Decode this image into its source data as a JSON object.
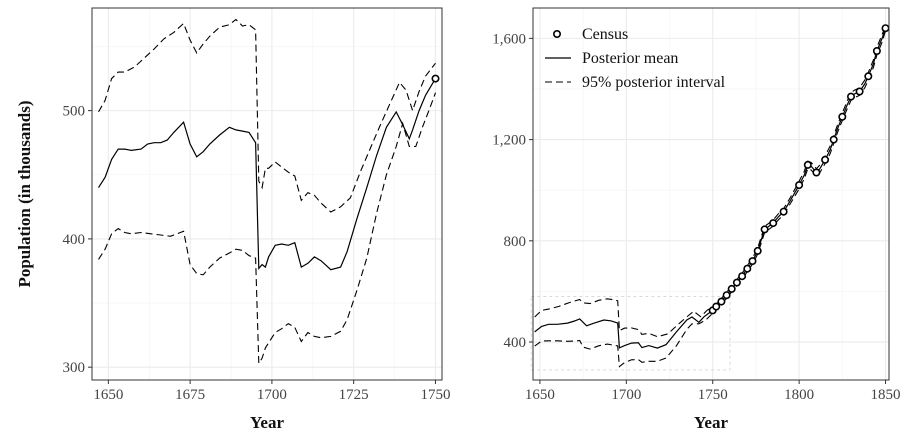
{
  "chart_data": [
    {
      "type": "line",
      "xlabel": "Year",
      "ylabel": "Population (in thousands)",
      "xlim": [
        1645,
        1752
      ],
      "ylim": [
        290,
        580
      ],
      "x_ticks": [
        1650,
        1675,
        1700,
        1725,
        1750
      ],
      "x_tick_labels": [
        "1650",
        "1675",
        "1700",
        "1725",
        "1750"
      ],
      "y_ticks": [
        300,
        400,
        500
      ],
      "y_tick_labels": [
        "300",
        "400",
        "500"
      ],
      "grid": true,
      "series": [
        {
          "name": "Posterior mean",
          "style": "solid",
          "x": [
            1647,
            1649,
            1651,
            1653,
            1655,
            1657,
            1660,
            1662,
            1664,
            1666,
            1668,
            1670,
            1673,
            1675,
            1677,
            1679,
            1681,
            1684,
            1687,
            1689,
            1691,
            1693,
            1695,
            1696,
            1697,
            1698,
            1699,
            1701,
            1703,
            1705,
            1707,
            1709,
            1711,
            1713,
            1715,
            1718,
            1721,
            1723,
            1726,
            1729,
            1732,
            1735,
            1738,
            1740,
            1742,
            1743,
            1745,
            1747,
            1750
          ],
          "y": [
            440,
            448,
            462,
            470,
            470,
            469,
            470,
            474,
            475,
            475,
            477,
            483,
            491,
            474,
            464,
            468,
            474,
            481,
            487,
            485,
            484,
            483,
            475,
            377,
            380,
            378,
            386,
            395,
            396,
            395,
            397,
            378,
            381,
            386,
            383,
            376,
            378,
            390,
            416,
            440,
            465,
            487,
            499,
            489,
            478,
            485,
            500,
            512,
            525
          ]
        },
        {
          "name": "95% posterior interval",
          "style": "dashed",
          "x": [
            1647,
            1649,
            1651,
            1653,
            1655,
            1658,
            1661,
            1664,
            1667,
            1670,
            1673,
            1675,
            1677,
            1679,
            1681,
            1684,
            1687,
            1689,
            1691,
            1693,
            1695,
            1696,
            1697,
            1698,
            1699,
            1701,
            1703,
            1705,
            1707,
            1709,
            1711,
            1713,
            1715,
            1718,
            1721,
            1724,
            1727,
            1730,
            1733,
            1736,
            1739,
            1741,
            1743,
            1745,
            1747,
            1750
          ],
          "y": [
            499,
            508,
            525,
            530,
            530,
            534,
            541,
            548,
            556,
            561,
            568,
            555,
            545,
            552,
            558,
            565,
            567,
            571,
            566,
            567,
            563,
            445,
            440,
            455,
            455,
            460,
            456,
            452,
            449,
            430,
            436,
            434,
            428,
            421,
            425,
            432,
            452,
            470,
            488,
            505,
            522,
            516,
            500,
            515,
            527,
            537
          ]
        },
        {
          "name": "95% posterior interval (lower)",
          "style": "dashed",
          "x": [
            1647,
            1649,
            1651,
            1653,
            1655,
            1657,
            1660,
            1663,
            1666,
            1669,
            1671,
            1673,
            1675,
            1677,
            1679,
            1681,
            1684,
            1687,
            1689,
            1691,
            1693,
            1695,
            1696,
            1697,
            1698,
            1699,
            1701,
            1703,
            1705,
            1707,
            1709,
            1711,
            1713,
            1715,
            1718,
            1721,
            1723,
            1726,
            1729,
            1732,
            1735,
            1738,
            1740,
            1742,
            1744,
            1746,
            1748,
            1750
          ],
          "y": [
            384,
            392,
            404,
            408,
            405,
            404,
            405,
            404,
            403,
            402,
            404,
            406,
            380,
            373,
            372,
            378,
            385,
            389,
            392,
            391,
            387,
            385,
            303,
            307,
            315,
            319,
            327,
            330,
            334,
            331,
            320,
            327,
            324,
            323,
            324,
            328,
            337,
            360,
            385,
            420,
            450,
            472,
            490,
            472,
            472,
            487,
            500,
            514
          ]
        }
      ]
    },
    {
      "type": "line",
      "xlabel": "Year",
      "ylabel": "",
      "xlim": [
        1646,
        1852
      ],
      "ylim": [
        250,
        1720
      ],
      "x_ticks": [
        1650,
        1700,
        1750,
        1800,
        1850
      ],
      "x_tick_labels": [
        "1650",
        "1700",
        "1750",
        "1800",
        "1850"
      ],
      "y_ticks": [
        400,
        800,
        1200,
        1600
      ],
      "y_tick_labels": [
        "400",
        "800",
        "1,200",
        "1,600"
      ],
      "grid": true,
      "legend": {
        "position": "top-left",
        "items": [
          {
            "label": "Census",
            "symbol": "open-circle"
          },
          {
            "label": "Posterior mean",
            "symbol": "solid-line"
          },
          {
            "label": "95% posterior interval",
            "symbol": "dashed-line"
          }
        ]
      },
      "inset_region": {
        "xlim": [
          1645,
          1760
        ],
        "ylim": [
          290,
          580
        ]
      },
      "series": [
        {
          "name": "Census",
          "style": "points",
          "x": [
            1750,
            1752,
            1755,
            1758,
            1761,
            1764,
            1767,
            1770,
            1773,
            1776,
            1780,
            1785,
            1791,
            1800,
            1805,
            1810,
            1815,
            1820,
            1825,
            1830,
            1835,
            1840,
            1845,
            1850
          ],
          "y": [
            525,
            540,
            560,
            585,
            610,
            635,
            660,
            690,
            720,
            760,
            845,
            870,
            915,
            1020,
            1100,
            1070,
            1120,
            1200,
            1290,
            1370,
            1390,
            1450,
            1550,
            1640
          ]
        },
        {
          "name": "Posterior mean",
          "style": "solid",
          "x": [
            1647,
            1651,
            1655,
            1660,
            1666,
            1670,
            1673,
            1677,
            1681,
            1687,
            1691,
            1695,
            1696,
            1699,
            1703,
            1707,
            1709,
            1713,
            1718,
            1723,
            1729,
            1735,
            1738,
            1742,
            1745,
            1750,
            1752,
            1755,
            1758,
            1761,
            1764,
            1767,
            1770,
            1773,
            1776,
            1780,
            1783,
            1785,
            1788,
            1791,
            1795,
            1800,
            1803,
            1805,
            1807,
            1810,
            1812,
            1815,
            1818,
            1820,
            1822,
            1825,
            1828,
            1830,
            1832,
            1835,
            1838,
            1840,
            1843,
            1845,
            1848,
            1850
          ],
          "y": [
            440,
            462,
            470,
            470,
            475,
            483,
            491,
            464,
            474,
            487,
            484,
            475,
            377,
            386,
            396,
            397,
            378,
            386,
            376,
            390,
            440,
            487,
            499,
            478,
            500,
            525,
            540,
            560,
            585,
            610,
            635,
            660,
            690,
            720,
            760,
            845,
            860,
            870,
            895,
            915,
            960,
            1020,
            1060,
            1100,
            1095,
            1070,
            1085,
            1120,
            1160,
            1200,
            1240,
            1290,
            1340,
            1370,
            1380,
            1390,
            1420,
            1450,
            1500,
            1550,
            1600,
            1640
          ]
        },
        {
          "name": "95% posterior interval",
          "style": "dashed",
          "x": [
            1647,
            1651,
            1655,
            1661,
            1667,
            1673,
            1675,
            1679,
            1684,
            1689,
            1693,
            1695,
            1696,
            1699,
            1703,
            1707,
            1709,
            1713,
            1718,
            1724,
            1730,
            1736,
            1739,
            1743,
            1747,
            1750,
            1752,
            1755,
            1758,
            1761,
            1764,
            1767,
            1770,
            1773,
            1776,
            1780,
            1783,
            1785,
            1788,
            1791,
            1795,
            1800,
            1803,
            1805,
            1807,
            1810,
            1812,
            1815,
            1818,
            1820,
            1822,
            1825,
            1828,
            1830,
            1832,
            1835,
            1838,
            1840,
            1843,
            1845,
            1848,
            1850
          ],
          "y": [
            499,
            525,
            530,
            541,
            556,
            568,
            555,
            552,
            565,
            571,
            567,
            563,
            445,
            455,
            456,
            449,
            430,
            434,
            421,
            432,
            470,
            505,
            522,
            500,
            527,
            537,
            550,
            572,
            597,
            622,
            647,
            672,
            702,
            732,
            772,
            857,
            872,
            882,
            907,
            927,
            972,
            1035,
            1075,
            1115,
            1110,
            1085,
            1100,
            1135,
            1175,
            1215,
            1255,
            1305,
            1355,
            1385,
            1395,
            1405,
            1435,
            1465,
            1515,
            1565,
            1615,
            1650
          ]
        },
        {
          "name": "95% posterior interval (lower)",
          "style": "dashed",
          "x": [
            1647,
            1651,
            1655,
            1660,
            1666,
            1671,
            1673,
            1675,
            1679,
            1684,
            1689,
            1693,
            1695,
            1696,
            1699,
            1703,
            1707,
            1709,
            1713,
            1718,
            1723,
            1729,
            1735,
            1738,
            1742,
            1746,
            1750,
            1752,
            1755,
            1758,
            1761,
            1764,
            1767,
            1770,
            1773,
            1776,
            1780,
            1783,
            1785,
            1788,
            1791,
            1795,
            1800,
            1803,
            1805,
            1807,
            1810,
            1812,
            1815,
            1818,
            1820,
            1822,
            1825,
            1828,
            1830,
            1832,
            1835,
            1838,
            1840,
            1843,
            1845,
            1848,
            1850
          ],
          "y": [
            384,
            404,
            405,
            405,
            403,
            404,
            406,
            380,
            372,
            385,
            392,
            387,
            385,
            303,
            319,
            330,
            331,
            320,
            324,
            324,
            337,
            385,
            450,
            472,
            472,
            487,
            514,
            528,
            548,
            573,
            598,
            623,
            648,
            678,
            708,
            748,
            833,
            848,
            858,
            883,
            903,
            948,
            1005,
            1045,
            1085,
            1080,
            1055,
            1070,
            1105,
            1145,
            1185,
            1225,
            1275,
            1325,
            1355,
            1365,
            1375,
            1405,
            1435,
            1485,
            1535,
            1585,
            1630
          ]
        }
      ]
    }
  ]
}
